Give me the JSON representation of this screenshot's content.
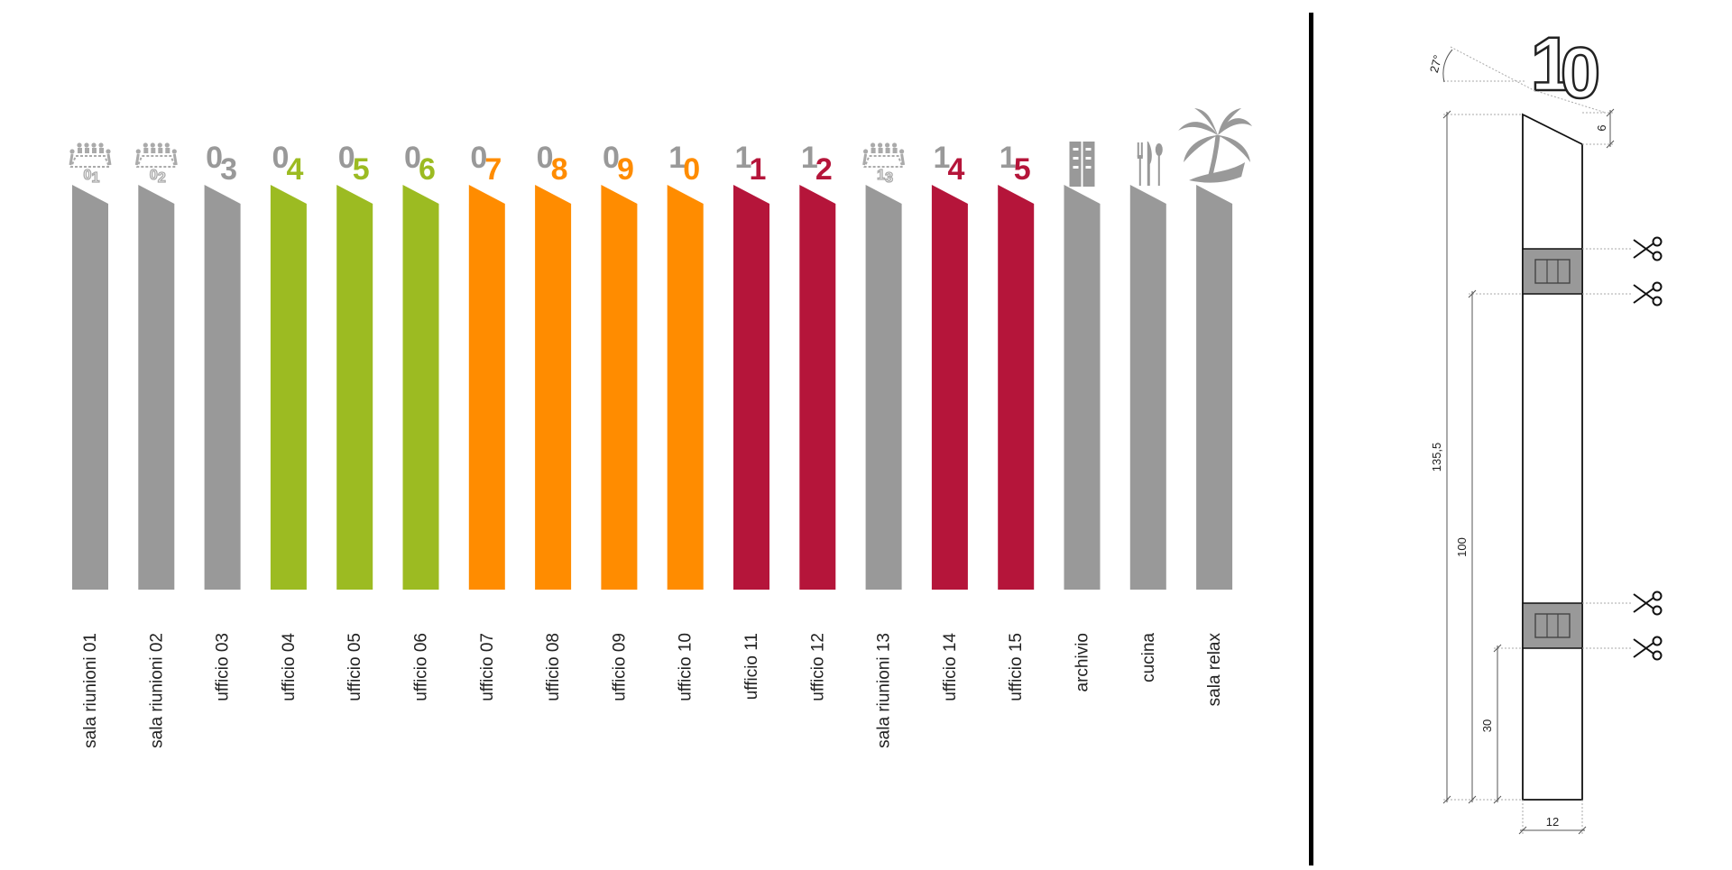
{
  "signs": [
    {
      "top": "0",
      "digit": "1",
      "label": "sala riunioni 01",
      "type": "meeting",
      "color": "#999999"
    },
    {
      "top": "0",
      "digit": "2",
      "label": "sala riunioni 02",
      "type": "meeting",
      "color": "#999999"
    },
    {
      "top": "0",
      "digit": "3",
      "label": "ufficio 03",
      "type": "number",
      "color": "#999999"
    },
    {
      "top": "0",
      "digit": "4",
      "label": "ufficio 04",
      "type": "number",
      "color": "#9CBB22"
    },
    {
      "top": "0",
      "digit": "5",
      "label": "ufficio 05",
      "type": "number",
      "color": "#9CBB22"
    },
    {
      "top": "0",
      "digit": "6",
      "label": "ufficio 06",
      "type": "number",
      "color": "#9CBB22"
    },
    {
      "top": "0",
      "digit": "7",
      "label": "ufficio 07",
      "type": "number",
      "color": "#FF8C00"
    },
    {
      "top": "0",
      "digit": "8",
      "label": "ufficio 08",
      "type": "number",
      "color": "#FF8C00"
    },
    {
      "top": "0",
      "digit": "9",
      "label": "ufficio 09",
      "type": "number",
      "color": "#FF8C00"
    },
    {
      "top": "1",
      "digit": "0",
      "label": "ufficio 10",
      "type": "number",
      "color": "#FF8C00"
    },
    {
      "top": "1",
      "digit": "1",
      "label": "ufficio 11",
      "type": "number",
      "color": "#B5153A"
    },
    {
      "top": "1",
      "digit": "2",
      "label": "ufficio 12",
      "type": "number",
      "color": "#B5153A"
    },
    {
      "top": "1",
      "digit": "3",
      "label": "sala riunioni 13",
      "type": "meeting",
      "color": "#999999"
    },
    {
      "top": "1",
      "digit": "4",
      "label": "ufficio 14",
      "type": "number",
      "color": "#B5153A"
    },
    {
      "top": "1",
      "digit": "5",
      "label": "ufficio 15",
      "type": "number",
      "color": "#B5153A"
    },
    {
      "top": "",
      "digit": "",
      "label": "archivio",
      "type": "archive-icon",
      "color": "#999999"
    },
    {
      "top": "",
      "digit": "",
      "label": "cucina",
      "type": "cutlery-icon",
      "color": "#999999"
    },
    {
      "top": "",
      "digit": "",
      "label": "sala relax",
      "type": "palm-tree-icon",
      "color": "#999999"
    }
  ],
  "colors": {
    "grey": "#999999",
    "green": "#9CBB22",
    "orange": "#FF8C00",
    "crimson": "#B5153A"
  },
  "drawing": {
    "number_top": "1",
    "number_bottom": "0",
    "angle": "27°",
    "dim_chamfer": "6",
    "dim_total": "135,5",
    "dim_mid": "100",
    "dim_low": "30",
    "dim_width": "12",
    "cut_icon": "scissors-icon"
  }
}
